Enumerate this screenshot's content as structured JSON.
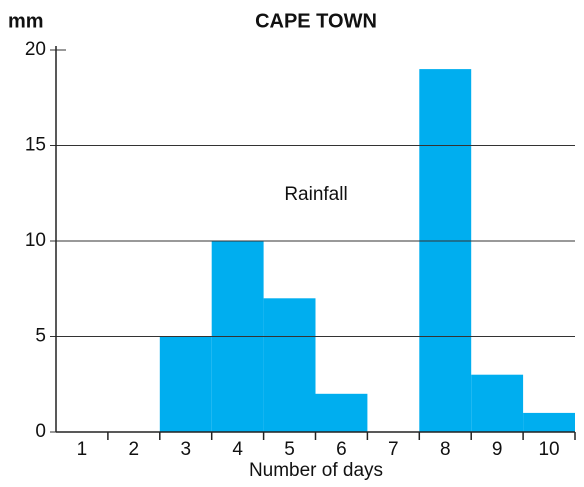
{
  "chart_data": {
    "type": "bar",
    "title": "CAPE TOWN",
    "y_label": "mm",
    "x_label": "Number of days",
    "annotation": "Rainfall",
    "categories": [
      "1",
      "2",
      "3",
      "4",
      "5",
      "6",
      "7",
      "8",
      "9",
      "10"
    ],
    "values": [
      0,
      0,
      5,
      10,
      7,
      2,
      0,
      19,
      3,
      1
    ],
    "color": "#00aeef",
    "ylim": [
      0,
      20
    ],
    "yticks": [
      0,
      5,
      10,
      15,
      20
    ],
    "grid": true
  }
}
